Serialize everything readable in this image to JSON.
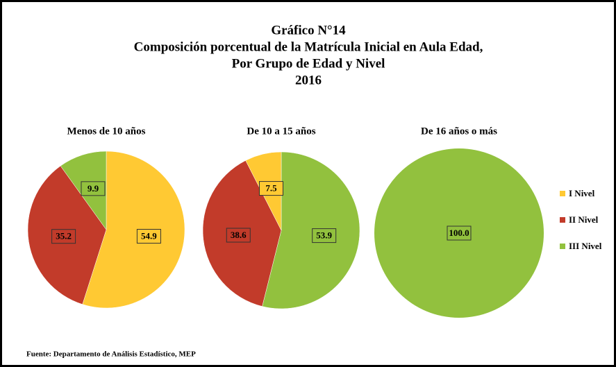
{
  "header": {
    "title": [
      "Gráfico N°14",
      "Composición porcentual de la Matrícula Inicial en Aula Edad,",
      "Por Grupo de Edad y Nivel",
      "2016"
    ]
  },
  "source": "Fuente: Departamento de Análisis Estadístico, MEP",
  "chart_data": [
    {
      "type": "pie",
      "title": "Menos de 10 años",
      "categories": [
        "I Nivel",
        "II Nivel",
        "III Nivel"
      ],
      "values": [
        54.9,
        35.2,
        9.9
      ],
      "colors": [
        "#ffc933",
        "#c23b2a",
        "#92c13e"
      ]
    },
    {
      "type": "pie",
      "title": "De 10 a 15 años",
      "categories": [
        "III Nivel",
        "II Nivel",
        "I Nivel"
      ],
      "values": [
        53.9,
        38.6,
        7.5
      ],
      "colors": [
        "#92c13e",
        "#c23b2a",
        "#ffc933"
      ]
    },
    {
      "type": "pie",
      "title": "De 16 años o más",
      "categories": [
        "III Nivel"
      ],
      "values": [
        100
      ],
      "value_labels": [
        "100.0"
      ],
      "colors": [
        "#92c13e"
      ]
    }
  ]
}
